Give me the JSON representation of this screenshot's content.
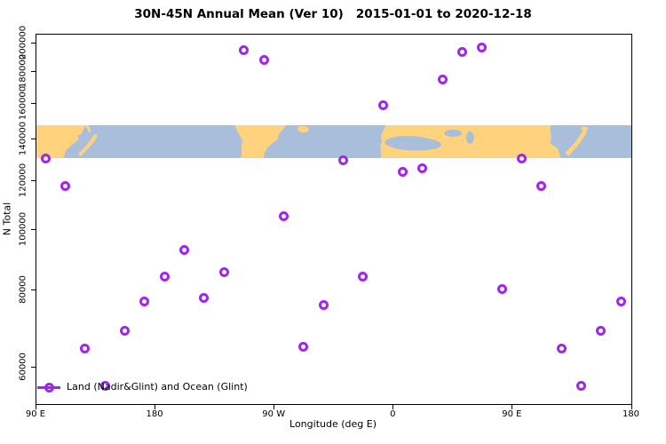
{
  "title": "30N-45N Annual Mean (Ver 10)   2015-01-01 to 2020-12-18",
  "y_axis": {
    "label": "N Total",
    "ticks": [
      "60000",
      "80000",
      "100000",
      "120000",
      "140000",
      "160000",
      "180000",
      "200000"
    ]
  },
  "x_axis": {
    "label": "Longitude (deg E)",
    "ticks": [
      {
        "deg": 90,
        "label": "90 E"
      },
      {
        "deg": 180,
        "label": "180"
      },
      {
        "deg": 270,
        "label": "90 W"
      },
      {
        "deg": 360,
        "label": "0"
      },
      {
        "deg": 450,
        "label": "90 E"
      },
      {
        "deg": 540,
        "label": "180"
      }
    ]
  },
  "legend": {
    "label": "Land (Nadir&Glint) and Ocean (Glint)"
  },
  "colors": {
    "marker": "#A125F2",
    "land": "#FFD37E",
    "ocean": "#A9BEDB",
    "axis": "#000000",
    "background": "#ffffff"
  },
  "chart_data": {
    "type": "scatter",
    "title": "30N-45N Annual Mean (Ver 10)   2015-01-01 to 2020-12-18",
    "xlabel": "Longitude (deg E)",
    "ylabel": "N Total",
    "y_scale": "log",
    "ylim": [
      52000,
      205000
    ],
    "x_axis_deg_range": [
      90,
      540
    ],
    "grid": false,
    "legend_position": "bottom-left",
    "legend_entries": [
      "Land (Nadir&Glint) and Ocean (Glint)"
    ],
    "map_band_value_range": [
      130400,
      147200
    ],
    "map_band_note": "horizontal strip showing 30N-45N land/ocean world map",
    "points": [
      {
        "axis_deg": 97.5,
        "lon": "97.5E",
        "value": 130300
      },
      {
        "axis_deg": 112.5,
        "lon": "112.5E",
        "value": 117600
      },
      {
        "axis_deg": 127.5,
        "lon": "127.5E",
        "value": 64200
      },
      {
        "axis_deg": 142.5,
        "lon": "142.5E",
        "value": 56000
      },
      {
        "axis_deg": 157.5,
        "lon": "157.5E",
        "value": 68700
      },
      {
        "axis_deg": 172.5,
        "lon": "172.5E",
        "value": 76400
      },
      {
        "axis_deg": 187.5,
        "lon": "172.5W",
        "value": 83800
      },
      {
        "axis_deg": 202.5,
        "lon": "157.5W",
        "value": 92500
      },
      {
        "axis_deg": 217.5,
        "lon": "142.5W",
        "value": 77400
      },
      {
        "axis_deg": 232.5,
        "lon": "127.5W",
        "value": 85300
      },
      {
        "axis_deg": 247.5,
        "lon": "112.5W",
        "value": 194400
      },
      {
        "axis_deg": 262.5,
        "lon": "97.5W",
        "value": 187600
      },
      {
        "axis_deg": 277.5,
        "lon": "82.5W",
        "value": 104900
      },
      {
        "axis_deg": 292.5,
        "lon": "67.5W",
        "value": 64700
      },
      {
        "axis_deg": 307.5,
        "lon": "52.5W",
        "value": 75400
      },
      {
        "axis_deg": 322.5,
        "lon": "37.5W",
        "value": 129400
      },
      {
        "axis_deg": 337.5,
        "lon": "22.5W",
        "value": 83800
      },
      {
        "axis_deg": 352.5,
        "lon": "7.5W",
        "value": 158800
      },
      {
        "axis_deg": 367.5,
        "lon": "7.5E",
        "value": 124000
      },
      {
        "axis_deg": 382.5,
        "lon": "22.5E",
        "value": 125400
      },
      {
        "axis_deg": 397.5,
        "lon": "37.5E",
        "value": 174500
      },
      {
        "axis_deg": 412.5,
        "lon": "52.5E",
        "value": 193300
      },
      {
        "axis_deg": 427.5,
        "lon": "67.5E",
        "value": 196300
      },
      {
        "axis_deg": 442.5,
        "lon": "82.5E",
        "value": 80200
      },
      {
        "axis_deg": 457.5,
        "lon": "97.5E",
        "value": 130300,
        "wrapped": true
      },
      {
        "axis_deg": 472.5,
        "lon": "112.5E",
        "value": 117600,
        "wrapped": true
      },
      {
        "axis_deg": 487.5,
        "lon": "127.5E",
        "value": 64200,
        "wrapped": true
      },
      {
        "axis_deg": 502.5,
        "lon": "142.5E",
        "value": 56000,
        "wrapped": true
      },
      {
        "axis_deg": 517.5,
        "lon": "157.5E",
        "value": 68700,
        "wrapped": true
      },
      {
        "axis_deg": 532.5,
        "lon": "172.5E",
        "value": 76400,
        "wrapped": true
      }
    ]
  }
}
